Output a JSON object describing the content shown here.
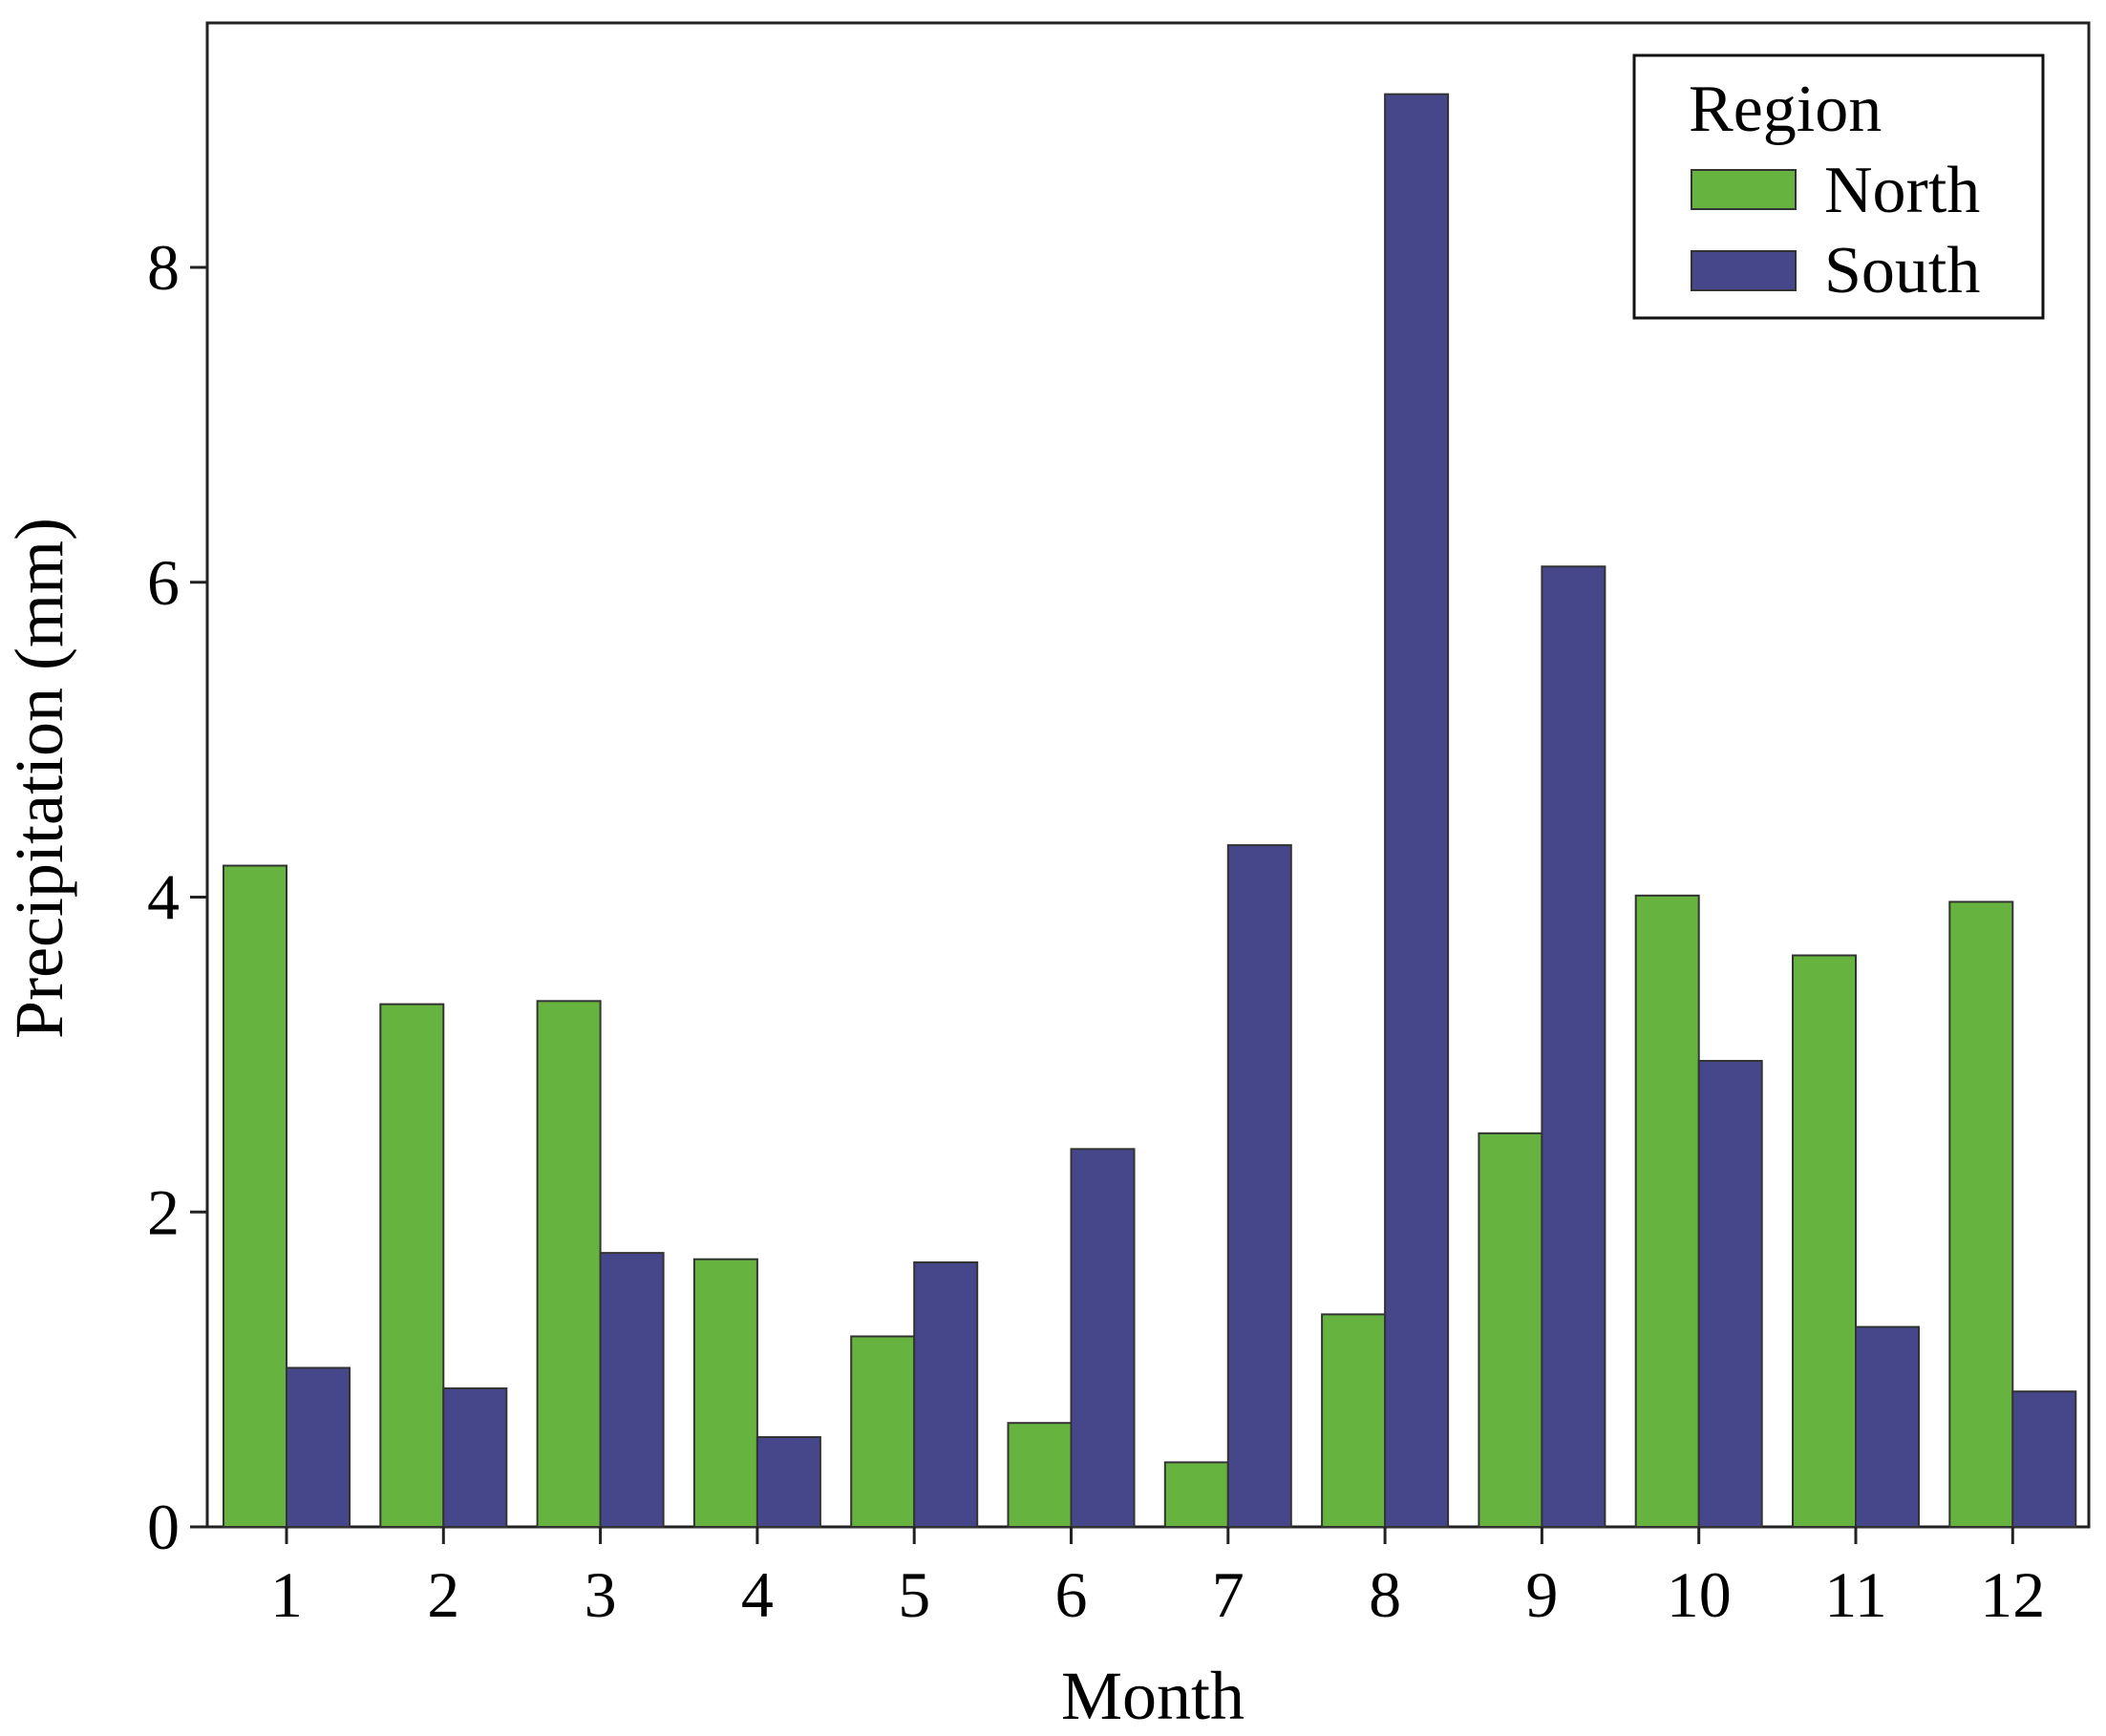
{
  "chart_data": {
    "type": "bar",
    "title": "",
    "xlabel": "Month",
    "ylabel": "Precipitation (mm)",
    "ylim": [
      0,
      9.5
    ],
    "y_ticks": [
      "0",
      "2",
      "4",
      "6",
      "8"
    ],
    "categories": [
      "1",
      "2",
      "3",
      "4",
      "5",
      "6",
      "7",
      "8",
      "9",
      "10",
      "11",
      "12"
    ],
    "series": [
      {
        "name": "North",
        "color": "#67b33f",
        "values": [
          4.2,
          3.32,
          3.34,
          1.7,
          1.21,
          0.66,
          0.41,
          1.35,
          2.5,
          4.01,
          3.63,
          3.97
        ]
      },
      {
        "name": "South",
        "color": "#46478b",
        "values": [
          1.01,
          0.88,
          1.74,
          0.57,
          1.68,
          2.4,
          4.33,
          9.1,
          6.1,
          2.96,
          1.27,
          0.86
        ]
      }
    ],
    "legend": {
      "title": "Region",
      "position": "top-right"
    },
    "grid": false
  }
}
